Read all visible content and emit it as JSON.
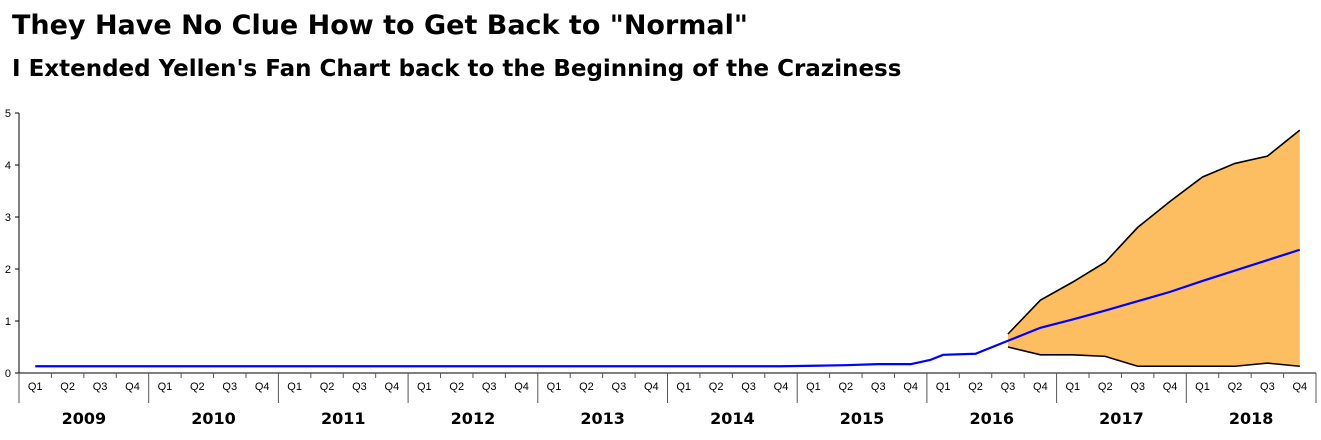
{
  "chart_data": {
    "type": "area",
    "title": "They Have No Clue How to Get Back to \"Normal\"",
    "subtitle": "I Extended Yellen's Fan Chart back to the Beginning of the Craziness",
    "xlabel": "",
    "ylabel": "",
    "ylim": [
      0,
      5
    ],
    "yticks": [
      0,
      1,
      2,
      3,
      4,
      5
    ],
    "grid": false,
    "legend": "none",
    "quarter_labels": [
      "Q1",
      "Q2",
      "Q3",
      "Q4"
    ],
    "years": [
      "2009",
      "2010",
      "2011",
      "2012",
      "2013",
      "2014",
      "2015",
      "2016",
      "2017",
      "2018"
    ],
    "categories": [
      "2009 Q1",
      "2009 Q2",
      "2009 Q3",
      "2009 Q4",
      "2010 Q1",
      "2010 Q2",
      "2010 Q3",
      "2010 Q4",
      "2011 Q1",
      "2011 Q2",
      "2011 Q3",
      "2011 Q4",
      "2012 Q1",
      "2012 Q2",
      "2012 Q3",
      "2012 Q4",
      "2013 Q1",
      "2013 Q2",
      "2013 Q3",
      "2013 Q4",
      "2014 Q1",
      "2014 Q2",
      "2014 Q3",
      "2014 Q4",
      "2015 Q1",
      "2015 Q2",
      "2015 Q3",
      "2015 Q4",
      "2016 Q1",
      "2016 Q2",
      "2016 Q3",
      "2016 Q4",
      "2017 Q1",
      "2017 Q2",
      "2017 Q3",
      "2017 Q4",
      "2018 Q1",
      "2018 Q2",
      "2018 Q3",
      "2018 Q4"
    ],
    "series": [
      {
        "role": "central-path",
        "color": "#0000ff",
        "x": [
          0,
          1,
          2,
          3,
          4,
          5,
          6,
          7,
          8,
          9,
          10,
          11,
          12,
          13,
          14,
          15,
          16,
          17,
          18,
          19,
          20,
          21,
          22,
          23,
          24,
          25,
          26,
          27,
          27.6,
          28,
          29,
          30,
          31,
          32,
          33,
          34,
          35,
          36,
          37,
          38,
          39
        ],
        "values": [
          0.13,
          0.13,
          0.13,
          0.13,
          0.13,
          0.13,
          0.13,
          0.13,
          0.13,
          0.13,
          0.13,
          0.13,
          0.13,
          0.13,
          0.13,
          0.13,
          0.13,
          0.13,
          0.13,
          0.13,
          0.13,
          0.13,
          0.13,
          0.13,
          0.14,
          0.15,
          0.17,
          0.17,
          0.25,
          0.35,
          0.37,
          0.62,
          0.87,
          1.03,
          1.2,
          1.38,
          1.56,
          1.77,
          1.97,
          2.17,
          2.37
        ]
      },
      {
        "role": "upper-band",
        "color": "#000000",
        "x": [
          30,
          31,
          32,
          33,
          34,
          35,
          36,
          37,
          38,
          39
        ],
        "values": [
          0.75,
          1.4,
          1.75,
          2.13,
          2.8,
          3.3,
          3.77,
          4.03,
          4.17,
          4.67
        ]
      },
      {
        "role": "lower-band",
        "color": "#000000",
        "x": [
          30,
          31,
          32,
          33,
          34,
          35,
          36,
          37,
          38,
          39
        ],
        "values": [
          0.5,
          0.35,
          0.35,
          0.32,
          0.13,
          0.13,
          0.13,
          0.13,
          0.19,
          0.13
        ]
      }
    ],
    "band_fill": "#fdbe62"
  }
}
